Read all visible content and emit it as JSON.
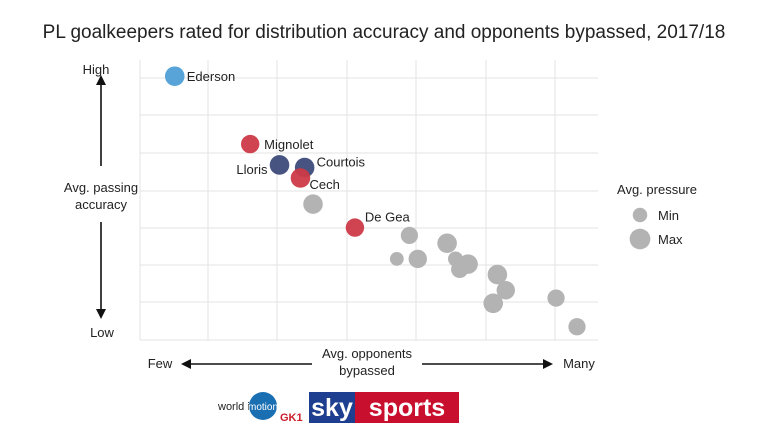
{
  "chart_data": {
    "type": "scatter",
    "title": "PL goalkeepers rated for distribution accuracy and opponents bypassed, 2017/18",
    "xlabel": "Avg. opponents bypassed",
    "ylabel": "Avg. passing accuracy",
    "x_low_label": "Few",
    "x_high_label": "Many",
    "y_high_label": "High",
    "y_low_label": "Low",
    "xlim": [
      0,
      10
    ],
    "ylim": [
      0,
      10
    ],
    "grid": true,
    "legend": {
      "title": "Avg. pressure",
      "placement": "right",
      "entries": [
        {
          "label": "Min",
          "size": 0.35
        },
        {
          "label": "Max",
          "size": 1.0
        }
      ]
    },
    "colors": {
      "default": "#b3b3b3",
      "blue": "#4f9fd6",
      "red": "#cc3a47",
      "navy": "#3d4a7a",
      "grid": "#e3e3e3"
    },
    "points": [
      {
        "label": "Ederson",
        "x": 0.4,
        "y": 9.8,
        "size": 0.85,
        "color": "blue"
      },
      {
        "label": "Mignolet",
        "x": 2.2,
        "y": 7.2,
        "size": 0.8,
        "color": "red"
      },
      {
        "label": "Lloris",
        "x": 2.9,
        "y": 6.4,
        "size": 0.85,
        "color": "navy"
      },
      {
        "label": "Courtois",
        "x": 3.5,
        "y": 6.3,
        "size": 0.85,
        "color": "navy"
      },
      {
        "label": "Cech",
        "x": 3.4,
        "y": 5.9,
        "size": 0.85,
        "color": "red"
      },
      {
        "label": "De Gea",
        "x": 4.7,
        "y": 4.0,
        "size": 0.8,
        "color": "red"
      },
      {
        "label": "",
        "x": 3.7,
        "y": 4.9,
        "size": 0.85,
        "color": "default"
      },
      {
        "label": "",
        "x": 6.0,
        "y": 3.7,
        "size": 0.75,
        "color": "default"
      },
      {
        "label": "",
        "x": 6.9,
        "y": 3.4,
        "size": 0.85,
        "color": "default"
      },
      {
        "label": "",
        "x": 5.7,
        "y": 2.8,
        "size": 0.6,
        "color": "default"
      },
      {
        "label": "",
        "x": 6.2,
        "y": 2.8,
        "size": 0.8,
        "color": "default"
      },
      {
        "label": "",
        "x": 7.1,
        "y": 2.8,
        "size": 0.65,
        "color": "default"
      },
      {
        "label": "",
        "x": 7.4,
        "y": 2.6,
        "size": 0.85,
        "color": "default"
      },
      {
        "label": "",
        "x": 7.2,
        "y": 2.4,
        "size": 0.75,
        "color": "default"
      },
      {
        "label": "",
        "x": 8.1,
        "y": 2.2,
        "size": 0.85,
        "color": "default"
      },
      {
        "label": "",
        "x": 8.3,
        "y": 1.6,
        "size": 0.8,
        "color": "default"
      },
      {
        "label": "",
        "x": 8.0,
        "y": 1.1,
        "size": 0.85,
        "color": "default"
      },
      {
        "label": "",
        "x": 9.5,
        "y": 1.3,
        "size": 0.75,
        "color": "default"
      },
      {
        "label": "",
        "x": 10.0,
        "y": 0.2,
        "size": 0.75,
        "color": "default"
      }
    ]
  },
  "branding": {
    "wim_text_1": "world in",
    "wim_text_2": "motion",
    "gk_text": "GK1",
    "sky_text": "sky",
    "sports_text": "sports"
  }
}
